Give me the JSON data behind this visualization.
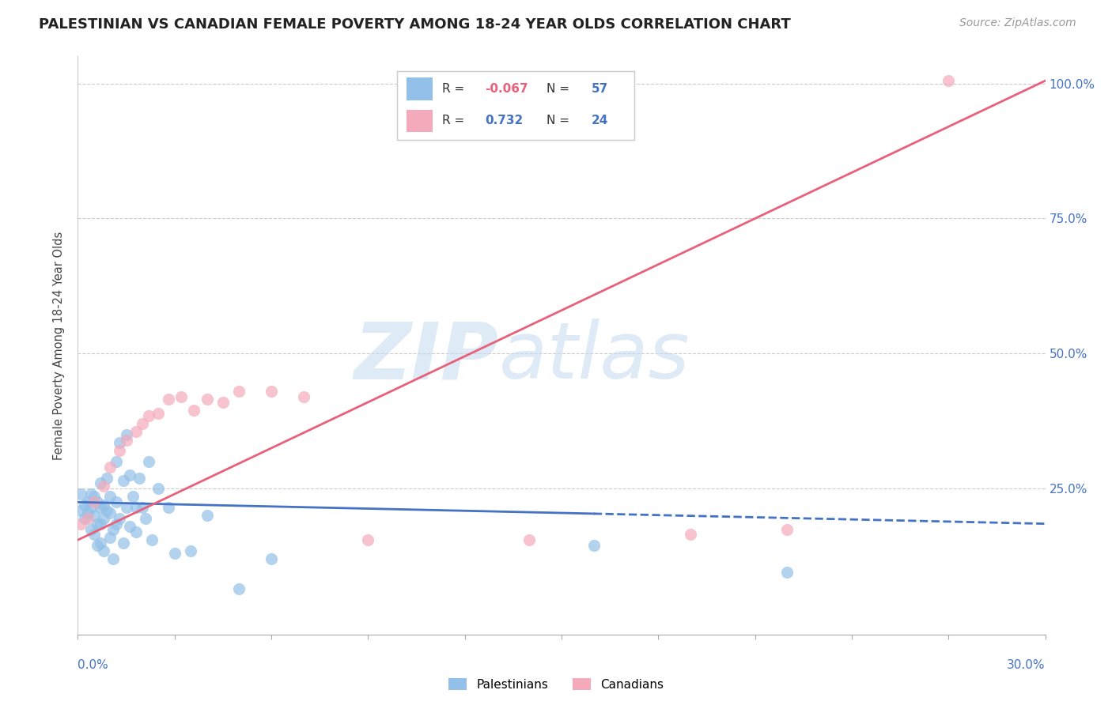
{
  "title": "PALESTINIAN VS CANADIAN FEMALE POVERTY AMONG 18-24 YEAR OLDS CORRELATION CHART",
  "source": "Source: ZipAtlas.com",
  "ylabel": "Female Poverty Among 18-24 Year Olds",
  "legend_label1": "Palestinians",
  "legend_label2": "Canadians",
  "R1": -0.067,
  "N1": 57,
  "R2": 0.732,
  "N2": 24,
  "blue_color": "#92C0E8",
  "pink_color": "#F4AABB",
  "blue_line_color": "#4472C4",
  "pink_line_color": "#E8607A",
  "bg_color": "#FFFFFF",
  "xlim": [
    0.0,
    0.3
  ],
  "ylim": [
    -0.02,
    1.05
  ],
  "title_fontsize": 13,
  "palestinians_x": [
    0.001,
    0.001,
    0.002,
    0.002,
    0.003,
    0.003,
    0.004,
    0.004,
    0.004,
    0.005,
    0.005,
    0.005,
    0.006,
    0.006,
    0.006,
    0.007,
    0.007,
    0.007,
    0.007,
    0.008,
    0.008,
    0.008,
    0.009,
    0.009,
    0.01,
    0.01,
    0.01,
    0.011,
    0.011,
    0.012,
    0.012,
    0.012,
    0.013,
    0.013,
    0.014,
    0.014,
    0.015,
    0.015,
    0.016,
    0.016,
    0.017,
    0.018,
    0.018,
    0.019,
    0.02,
    0.021,
    0.022,
    0.023,
    0.025,
    0.028,
    0.03,
    0.035,
    0.04,
    0.05,
    0.06,
    0.16,
    0.22
  ],
  "palestinians_y": [
    0.21,
    0.24,
    0.195,
    0.22,
    0.205,
    0.225,
    0.175,
    0.215,
    0.24,
    0.165,
    0.2,
    0.235,
    0.145,
    0.185,
    0.225,
    0.15,
    0.185,
    0.215,
    0.26,
    0.135,
    0.195,
    0.22,
    0.21,
    0.27,
    0.16,
    0.205,
    0.235,
    0.12,
    0.175,
    0.185,
    0.3,
    0.225,
    0.195,
    0.335,
    0.15,
    0.265,
    0.215,
    0.35,
    0.18,
    0.275,
    0.235,
    0.17,
    0.215,
    0.27,
    0.215,
    0.195,
    0.3,
    0.155,
    0.25,
    0.215,
    0.13,
    0.135,
    0.2,
    0.065,
    0.12,
    0.145,
    0.095
  ],
  "canadians_x": [
    0.001,
    0.003,
    0.005,
    0.008,
    0.01,
    0.013,
    0.015,
    0.018,
    0.02,
    0.022,
    0.025,
    0.028,
    0.032,
    0.036,
    0.04,
    0.045,
    0.05,
    0.06,
    0.07,
    0.09,
    0.14,
    0.19,
    0.22,
    0.27
  ],
  "canadians_y": [
    0.185,
    0.195,
    0.225,
    0.255,
    0.29,
    0.32,
    0.34,
    0.355,
    0.37,
    0.385,
    0.39,
    0.415,
    0.42,
    0.395,
    0.415,
    0.41,
    0.43,
    0.43,
    0.42,
    0.155,
    0.155,
    0.165,
    0.175,
    1.005
  ],
  "blue_line_y0": 0.225,
  "blue_line_y1": 0.185,
  "pink_line_y0": 0.155,
  "pink_line_y1": 1.005,
  "watermark_zip_color": "#C8DCF0",
  "watermark_atlas_color": "#C8DCF0"
}
